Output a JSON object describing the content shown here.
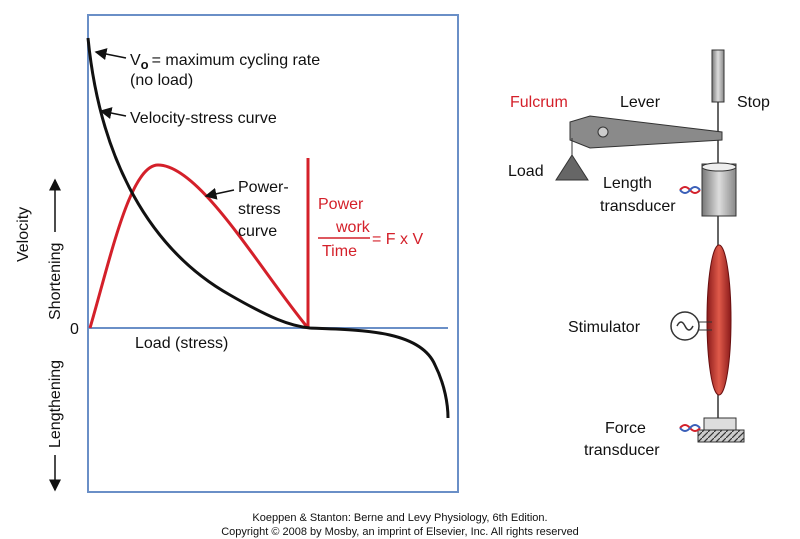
{
  "graph": {
    "v0_symbol": "V",
    "v0_subscript": "o",
    "v0_text": "= maximum cycling rate",
    "no_load": "(no load)",
    "velocity_stress": "Velocity-stress curve",
    "power_stress": [
      "Power-",
      "stress",
      "curve"
    ],
    "power": "Power",
    "work": "work",
    "time": "Time",
    "formula": "= F x V",
    "x_label": "Load (stress)",
    "origin": "0",
    "y_label": "Velocity",
    "shortening": "Shortening",
    "lengthening": "Lengthening"
  },
  "apparatus": {
    "fulcrum": "Fulcrum",
    "lever": "Lever",
    "stop": "Stop",
    "load": "Load",
    "length_transducer": [
      "Length",
      "transducer"
    ],
    "stimulator": "Stimulator",
    "force_transducer": [
      "Force",
      "transducer"
    ]
  },
  "footer": [
    "Koeppen & Stanton: Berne and Levy Physiology, 6th Edition.",
    "Copyright © 2008 by Mosby, an imprint of Elsevier, Inc. All rights reserved"
  ]
}
